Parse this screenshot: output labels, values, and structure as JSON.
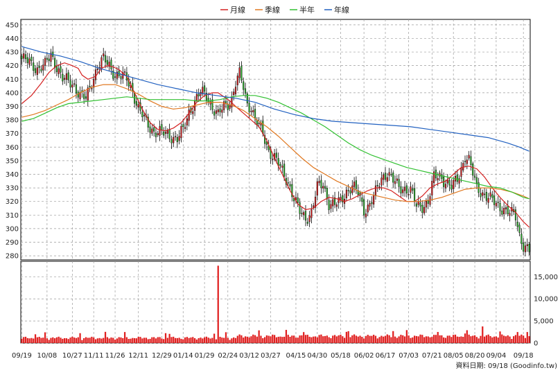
{
  "chart_data": [
    {
      "type": "candlestick",
      "legend": [
        {
          "name": "月線",
          "color": "#d42020"
        },
        {
          "name": "季線",
          "color": "#e07820"
        },
        {
          "name": "半年",
          "color": "#30c030"
        },
        {
          "name": "年線",
          "color": "#2060c0"
        }
      ],
      "ylim": [
        277,
        454
      ],
      "yticks": [
        280,
        290,
        300,
        310,
        320,
        330,
        340,
        350,
        360,
        370,
        380,
        390,
        400,
        410,
        420,
        430,
        440,
        450
      ],
      "up_color": "#d42020",
      "down_color": "#30b030",
      "grid": true,
      "ma_lines": [
        {
          "name": "月線",
          "color": "#d42020",
          "values": [
            [
              0,
              392
            ],
            [
              5,
              398
            ],
            [
              10,
              407
            ],
            [
              14,
              415
            ],
            [
              18,
              420
            ],
            [
              22,
              422
            ],
            [
              26,
              420
            ],
            [
              29,
              418
            ],
            [
              31,
              413
            ],
            [
              34,
              410
            ],
            [
              38,
              412
            ],
            [
              41,
              418
            ],
            [
              44,
              420
            ],
            [
              47,
              419
            ],
            [
              50,
              417
            ],
            [
              54,
              412
            ],
            [
              58,
              400
            ],
            [
              62,
              388
            ],
            [
              66,
              378
            ],
            [
              70,
              373
            ],
            [
              74,
              372
            ],
            [
              78,
              374
            ],
            [
              82,
              378
            ],
            [
              86,
              385
            ],
            [
              90,
              393
            ],
            [
              94,
              398
            ],
            [
              98,
              400
            ],
            [
              101,
              400
            ],
            [
              104,
              397
            ],
            [
              107,
              394
            ],
            [
              110,
              390
            ],
            [
              114,
              385
            ],
            [
              118,
              380
            ],
            [
              122,
              375
            ],
            [
              126,
              365
            ],
            [
              130,
              352
            ],
            [
              134,
              340
            ],
            [
              138,
              328
            ],
            [
              142,
              318
            ],
            [
              146,
              314
            ],
            [
              150,
              315
            ],
            [
              154,
              320
            ],
            [
              158,
              323
            ],
            [
              162,
              322
            ],
            [
              166,
              320
            ],
            [
              170,
              322
            ],
            [
              174,
              325
            ],
            [
              178,
              328
            ],
            [
              182,
              330
            ],
            [
              186,
              330
            ],
            [
              190,
              328
            ],
            [
              194,
              324
            ],
            [
              198,
              320
            ],
            [
              202,
              320
            ],
            [
              206,
              324
            ],
            [
              210,
              330
            ],
            [
              214,
              333
            ],
            [
              218,
              335
            ],
            [
              222,
              340
            ],
            [
              226,
              345
            ],
            [
              230,
              346
            ],
            [
              234,
              344
            ],
            [
              238,
              338
            ],
            [
              242,
              330
            ],
            [
              246,
              323
            ],
            [
              250,
              317
            ],
            [
              254,
              312
            ],
            [
              258,
              305
            ],
            [
              261,
              301
            ]
          ]
        },
        {
          "name": "季線",
          "color": "#e07820",
          "values": [
            [
              0,
              382
            ],
            [
              6,
              384
            ],
            [
              12,
              387
            ],
            [
              18,
              391
            ],
            [
              24,
              395
            ],
            [
              30,
              400
            ],
            [
              36,
              404
            ],
            [
              42,
              406
            ],
            [
              48,
              406
            ],
            [
              54,
              403
            ],
            [
              60,
              399
            ],
            [
              66,
              394
            ],
            [
              72,
              390
            ],
            [
              78,
              388
            ],
            [
              84,
              389
            ],
            [
              90,
              391
            ],
            [
              96,
              393
            ],
            [
              102,
              393
            ],
            [
              108,
              391
            ],
            [
              114,
              387
            ],
            [
              120,
              381
            ],
            [
              126,
              375
            ],
            [
              132,
              368
            ],
            [
              138,
              360
            ],
            [
              144,
              352
            ],
            [
              150,
              345
            ],
            [
              156,
              340
            ],
            [
              162,
              335
            ],
            [
              168,
              331
            ],
            [
              174,
              327
            ],
            [
              180,
              325
            ],
            [
              186,
              323
            ],
            [
              192,
              321
            ],
            [
              198,
              320
            ],
            [
              204,
              320
            ],
            [
              210,
              321
            ],
            [
              216,
              323
            ],
            [
              222,
              326
            ],
            [
              228,
              329
            ],
            [
              234,
              330
            ],
            [
              240,
              330
            ],
            [
              246,
              329
            ],
            [
              252,
              327
            ],
            [
              258,
              324
            ],
            [
              261,
              322
            ]
          ]
        },
        {
          "name": "半年",
          "color": "#30c030",
          "values": [
            [
              0,
              379
            ],
            [
              6,
              381
            ],
            [
              12,
              385
            ],
            [
              18,
              389
            ],
            [
              24,
              392
            ],
            [
              30,
              393
            ],
            [
              36,
              394
            ],
            [
              42,
              395
            ],
            [
              48,
              396
            ],
            [
              54,
              397
            ],
            [
              60,
              396
            ],
            [
              66,
              395
            ],
            [
              72,
              395
            ],
            [
              78,
              395
            ],
            [
              84,
              395
            ],
            [
              90,
              394
            ],
            [
              96,
              394
            ],
            [
              102,
              395
            ],
            [
              108,
              397
            ],
            [
              114,
              398
            ],
            [
              120,
              398
            ],
            [
              126,
              396
            ],
            [
              132,
              393
            ],
            [
              138,
              389
            ],
            [
              144,
              385
            ],
            [
              150,
              380
            ],
            [
              156,
              375
            ],
            [
              162,
              369
            ],
            [
              168,
              363
            ],
            [
              174,
              358
            ],
            [
              180,
              354
            ],
            [
              186,
              351
            ],
            [
              192,
              348
            ],
            [
              198,
              345
            ],
            [
              204,
              343
            ],
            [
              210,
              341
            ],
            [
              216,
              339
            ],
            [
              222,
              337
            ],
            [
              228,
              335
            ],
            [
              234,
              333
            ],
            [
              240,
              331
            ],
            [
              246,
              330
            ],
            [
              252,
              327
            ],
            [
              258,
              323
            ],
            [
              261,
              322
            ]
          ]
        },
        {
          "name": "年線",
          "color": "#2060c0",
          "values": [
            [
              0,
              434
            ],
            [
              10,
              430
            ],
            [
              20,
              427
            ],
            [
              30,
              423
            ],
            [
              40,
              418
            ],
            [
              50,
              414
            ],
            [
              60,
              410
            ],
            [
              70,
              406
            ],
            [
              80,
              403
            ],
            [
              90,
              400
            ],
            [
              100,
              398
            ],
            [
              110,
              396
            ],
            [
              120,
              393
            ],
            [
              130,
              388
            ],
            [
              140,
              384
            ],
            [
              150,
              381
            ],
            [
              160,
              379
            ],
            [
              170,
              378
            ],
            [
              180,
              377
            ],
            [
              190,
              376
            ],
            [
              200,
              375
            ],
            [
              210,
              373
            ],
            [
              220,
              371
            ],
            [
              230,
              369
            ],
            [
              240,
              367
            ],
            [
              250,
              363
            ],
            [
              256,
              360
            ],
            [
              261,
              357
            ]
          ]
        }
      ]
    },
    {
      "type": "bar",
      "ylim": [
        0,
        18500
      ],
      "yticks": [
        0,
        5000,
        10000,
        15000
      ],
      "ytick_labels": [
        "0",
        "5,000",
        "10,000",
        "15,000"
      ],
      "bar_color": "#e02020",
      "spike": {
        "index": 101,
        "value": 17500
      }
    }
  ],
  "x_tick_labels": [
    "09/19",
    "10/08",
    "10/27",
    "11/11",
    "11/26",
    "12/11",
    "12/29",
    "01/14",
    "01/29",
    "02/24",
    "03/12",
    "03/27",
    "04/15",
    "04/30",
    "05/18",
    "06/02",
    "06/17",
    "07/03",
    "07/21",
    "08/05",
    "08/20",
    "09/04",
    "09/18"
  ],
  "footer": "資料日期: 09/18  (Goodinfo.tw)"
}
